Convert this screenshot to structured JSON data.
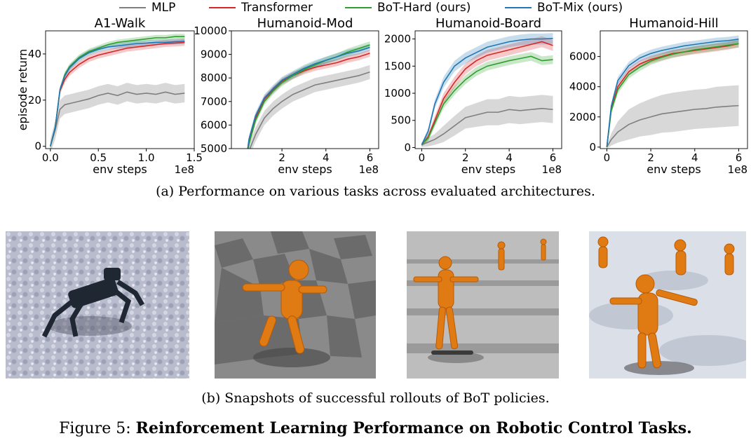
{
  "legend": {
    "mlp": "MLP",
    "transformer": "Transformer",
    "bot_hard": "BoT-Hard (ours)",
    "bot_mix": "BoT-Mix (ours)"
  },
  "colors": {
    "mlp": "#7f7f7f",
    "transformer": "#d62728",
    "bot_hard": "#2ca02c",
    "bot_mix": "#1f77b4"
  },
  "captions": {
    "a": "(a) Performance on various tasks across evaluated architectures.",
    "b": "(b) Snapshots of successful rollouts of BoT policies.",
    "figure_label": "Figure 5:",
    "figure_title": "Reinforcement Learning Performance on Robotic Control Tasks."
  },
  "chart_data": [
    {
      "type": "line",
      "title": "A1-Walk",
      "xlabel": "env steps",
      "ylabel": "episode return",
      "x_multiplier": "1e8",
      "xlim": [
        -0.05,
        1.5
      ],
      "ylim": [
        -1,
        50
      ],
      "xticks": [
        0.0,
        0.5,
        1.0,
        1.5
      ],
      "xtick_labels": [
        "0.0",
        "0.5",
        "1.0",
        "1.5"
      ],
      "yticks": [
        0,
        20,
        40
      ],
      "ytick_labels": [
        "0",
        "20",
        "40"
      ],
      "x": [
        0,
        0.05,
        0.1,
        0.15,
        0.2,
        0.3,
        0.4,
        0.5,
        0.6,
        0.7,
        0.8,
        0.9,
        1.0,
        1.1,
        1.2,
        1.3,
        1.4
      ],
      "series": [
        {
          "key": "mlp",
          "values": [
            0,
            7,
            16,
            18,
            18.5,
            19.5,
            20.5,
            22,
            23,
            22,
            23.5,
            22.5,
            23,
            22.5,
            23.5,
            22.5,
            23
          ],
          "band": [
            3,
            4,
            4,
            4,
            4,
            4,
            4,
            4,
            4,
            4,
            4,
            4,
            4,
            4,
            4,
            4,
            4
          ]
        },
        {
          "key": "transformer",
          "values": [
            0,
            8,
            24,
            29,
            32,
            35.5,
            38,
            39.5,
            40.5,
            41.5,
            42.5,
            43,
            43.5,
            44,
            44.5,
            44.7,
            45
          ],
          "band": [
            1,
            1.5,
            1.5,
            1.5,
            1.5,
            1.5,
            1.5,
            1.5,
            1.5,
            1.5,
            1.5,
            1.5,
            1.5,
            1.5,
            1.5,
            1.5,
            1.5
          ]
        },
        {
          "key": "bot_hard",
          "values": [
            0,
            8,
            24.5,
            31,
            34.5,
            38.5,
            41,
            42.5,
            44,
            45,
            45.5,
            46,
            46.5,
            47,
            47,
            47.5,
            47.5
          ],
          "band": [
            1,
            1.2,
            1.2,
            1.2,
            1.2,
            1.2,
            1.2,
            1.2,
            1.2,
            1.2,
            1.2,
            1.2,
            1.2,
            1.2,
            1.2,
            1.2,
            1.2
          ]
        },
        {
          "key": "bot_mix",
          "values": [
            0,
            8,
            24.5,
            30.5,
            34,
            38,
            40.5,
            42,
            43,
            43.5,
            44,
            44.5,
            44.7,
            45,
            45,
            45.3,
            45.5
          ],
          "band": [
            1,
            1.2,
            1.2,
            1.2,
            1.2,
            1.2,
            1.2,
            1.2,
            1.2,
            1.2,
            1.2,
            1.2,
            1.2,
            1.2,
            1.2,
            1.2,
            1.2
          ]
        }
      ]
    },
    {
      "type": "line",
      "title": "Humanoid-Mod",
      "xlabel": "env steps",
      "ylabel": "",
      "x_multiplier": "1e8",
      "xlim": [
        -0.3,
        6.4
      ],
      "ylim": [
        5000,
        10000
      ],
      "xticks": [
        2,
        4,
        6
      ],
      "xtick_labels": [
        "2",
        "4",
        "6"
      ],
      "yticks": [
        5000,
        6000,
        7000,
        8000,
        9000,
        10000
      ],
      "ytick_labels": [
        "5000",
        "6000",
        "7000",
        "8000",
        "9000",
        "10000"
      ],
      "x": [
        0.3,
        0.5,
        0.8,
        1.2,
        1.6,
        2,
        2.5,
        3,
        3.5,
        4,
        4.5,
        5,
        5.5,
        6
      ],
      "series": [
        {
          "key": "mlp",
          "values": [
            4000,
            4900,
            5600,
            6300,
            6700,
            7000,
            7300,
            7500,
            7700,
            7800,
            7900,
            8000,
            8100,
            8250
          ],
          "band": [
            150,
            250,
            300,
            300,
            300,
            300,
            300,
            300,
            300,
            300,
            300,
            300,
            300,
            300
          ]
        },
        {
          "key": "transformer",
          "values": [
            4000,
            5300,
            6300,
            7100,
            7500,
            7850,
            8100,
            8300,
            8450,
            8550,
            8650,
            8800,
            8900,
            9050
          ],
          "band": [
            120,
            150,
            150,
            150,
            150,
            150,
            150,
            150,
            150,
            150,
            150,
            150,
            150,
            150
          ]
        },
        {
          "key": "bot_hard",
          "values": [
            4000,
            5200,
            6200,
            7000,
            7450,
            7800,
            8100,
            8350,
            8550,
            8750,
            8900,
            9100,
            9250,
            9400
          ],
          "band": [
            120,
            150,
            150,
            150,
            150,
            150,
            150,
            150,
            150,
            150,
            150,
            150,
            150,
            150
          ]
        },
        {
          "key": "bot_mix",
          "values": [
            4000,
            5400,
            6400,
            7150,
            7550,
            7900,
            8150,
            8400,
            8600,
            8750,
            8900,
            9050,
            9150,
            9300
          ],
          "band": [
            120,
            150,
            150,
            150,
            150,
            150,
            150,
            150,
            150,
            150,
            150,
            150,
            150,
            150
          ]
        }
      ]
    },
    {
      "type": "line",
      "title": "Humanoid-Board",
      "xlabel": "env steps",
      "ylabel": "",
      "x_multiplier": "1e8",
      "xlim": [
        -0.3,
        6.4
      ],
      "ylim": [
        -20,
        2150
      ],
      "xticks": [
        0,
        2,
        4,
        6
      ],
      "xtick_labels": [
        "0",
        "2",
        "4",
        "6"
      ],
      "yticks": [
        0,
        500,
        1000,
        1500,
        2000
      ],
      "ytick_labels": [
        "0",
        "500",
        "1000",
        "1500",
        "2000"
      ],
      "x": [
        0,
        0.3,
        0.6,
        1,
        1.5,
        2,
        2.5,
        3,
        3.5,
        4,
        4.5,
        5,
        5.5,
        6
      ],
      "series": [
        {
          "key": "mlp",
          "values": [
            50,
            100,
            150,
            250,
            400,
            550,
            600,
            650,
            650,
            700,
            680,
            700,
            720,
            700
          ],
          "band": [
            40,
            80,
            100,
            150,
            180,
            200,
            220,
            240,
            240,
            250,
            250,
            250,
            250,
            250
          ]
        },
        {
          "key": "transformer",
          "values": [
            50,
            200,
            500,
            900,
            1200,
            1450,
            1600,
            1700,
            1750,
            1800,
            1850,
            1900,
            1950,
            1880
          ],
          "band": [
            30,
            60,
            80,
            100,
            100,
            100,
            100,
            100,
            100,
            100,
            100,
            100,
            100,
            100
          ]
        },
        {
          "key": "bot_hard",
          "values": [
            50,
            180,
            450,
            800,
            1050,
            1250,
            1400,
            1500,
            1550,
            1600,
            1640,
            1680,
            1600,
            1620
          ],
          "band": [
            30,
            60,
            70,
            80,
            80,
            80,
            80,
            80,
            80,
            80,
            80,
            80,
            80,
            80
          ]
        },
        {
          "key": "bot_mix",
          "values": [
            50,
            300,
            800,
            1200,
            1500,
            1650,
            1750,
            1850,
            1900,
            1950,
            1980,
            2000,
            2000,
            2010
          ],
          "band": [
            30,
            60,
            80,
            100,
            100,
            100,
            100,
            100,
            100,
            100,
            100,
            100,
            100,
            100
          ]
        }
      ]
    },
    {
      "type": "line",
      "title": "Humanoid-Hill",
      "xlabel": "env steps",
      "ylabel": "",
      "x_multiplier": "1e8",
      "xlim": [
        -0.3,
        6.4
      ],
      "ylim": [
        -100,
        7700
      ],
      "xticks": [
        0,
        2,
        4,
        6
      ],
      "xtick_labels": [
        "0",
        "2",
        "4",
        "6"
      ],
      "yticks": [
        0,
        2000,
        4000,
        6000
      ],
      "ytick_labels": [
        "0",
        "2000",
        "4000",
        "6000"
      ],
      "x": [
        0,
        0.2,
        0.5,
        1,
        1.5,
        2,
        2.5,
        3,
        3.5,
        4,
        4.5,
        5,
        5.5,
        6
      ],
      "series": [
        {
          "key": "mlp",
          "values": [
            0,
            500,
            1000,
            1500,
            1800,
            2000,
            2200,
            2300,
            2400,
            2500,
            2550,
            2650,
            2700,
            2750
          ],
          "band": [
            100,
            400,
            700,
            1000,
            1100,
            1200,
            1250,
            1300,
            1300,
            1300,
            1300,
            1350,
            1350,
            1350
          ]
        },
        {
          "key": "transformer",
          "values": [
            0,
            2500,
            4000,
            5000,
            5500,
            5800,
            6000,
            6200,
            6300,
            6400,
            6500,
            6600,
            6700,
            6850
          ],
          "band": [
            100,
            200,
            250,
            250,
            250,
            250,
            250,
            250,
            250,
            250,
            250,
            250,
            250,
            250
          ]
        },
        {
          "key": "bot_hard",
          "values": [
            0,
            2400,
            3800,
            4800,
            5300,
            5700,
            5950,
            6150,
            6300,
            6450,
            6550,
            6650,
            6750,
            6850
          ],
          "band": [
            100,
            200,
            250,
            250,
            250,
            250,
            250,
            250,
            250,
            250,
            250,
            250,
            250,
            250
          ]
        },
        {
          "key": "bot_mix",
          "values": [
            0,
            2700,
            4400,
            5400,
            5900,
            6200,
            6400,
            6550,
            6700,
            6800,
            6900,
            7000,
            7050,
            7150
          ],
          "band": [
            100,
            200,
            250,
            250,
            250,
            250,
            250,
            250,
            250,
            250,
            250,
            250,
            250,
            250
          ]
        }
      ]
    }
  ]
}
